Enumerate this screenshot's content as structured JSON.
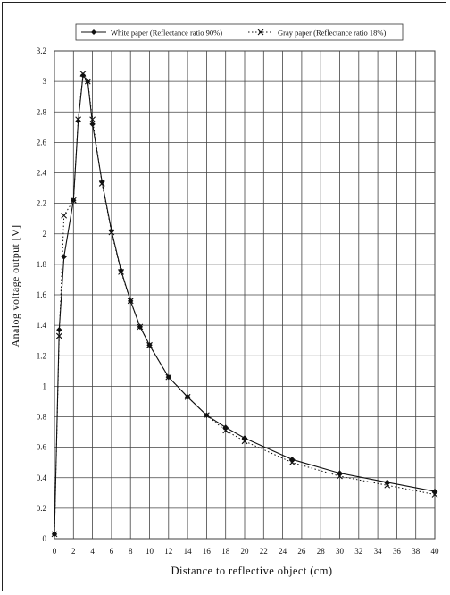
{
  "chart_data": {
    "type": "line",
    "title": "",
    "xlabel": "Distance to reflective object   (cm)",
    "ylabel": "Analog voltage output [V]",
    "xlim": [
      0,
      40
    ],
    "ylim": [
      0,
      3.2
    ],
    "xticks": [
      0,
      2,
      4,
      6,
      8,
      10,
      12,
      14,
      16,
      18,
      20,
      22,
      24,
      26,
      28,
      30,
      32,
      34,
      36,
      38,
      40
    ],
    "yticks": [
      0,
      0.2,
      0.4,
      0.6,
      0.8,
      1,
      1.2,
      1.4,
      1.6,
      1.8,
      2,
      2.2,
      2.4,
      2.6,
      2.8,
      3,
      3.2
    ],
    "grid": true,
    "legend_position": "top",
    "series": [
      {
        "name": "White paper (Reflectance ratio 90%)",
        "marker": "diamond",
        "line": "solid",
        "color": "#111111",
        "points": [
          [
            0,
            0.03
          ],
          [
            0.5,
            1.37
          ],
          [
            1,
            1.85
          ],
          [
            2,
            2.22
          ],
          [
            2.5,
            2.74
          ],
          [
            3,
            3.04
          ],
          [
            3.5,
            3.0
          ],
          [
            4,
            2.72
          ],
          [
            5,
            2.34
          ],
          [
            6,
            2.02
          ],
          [
            7,
            1.76
          ],
          [
            8,
            1.56
          ],
          [
            9,
            1.39
          ],
          [
            10,
            1.27
          ],
          [
            12,
            1.06
          ],
          [
            14,
            0.93
          ],
          [
            16,
            0.81
          ],
          [
            18,
            0.73
          ],
          [
            20,
            0.66
          ],
          [
            25,
            0.52
          ],
          [
            30,
            0.43
          ],
          [
            35,
            0.37
          ],
          [
            40,
            0.31
          ]
        ]
      },
      {
        "name": "Gray paper (Reflectance ratio 18%)",
        "marker": "x",
        "line": "dotted",
        "color": "#111111",
        "points": [
          [
            0,
            0.03
          ],
          [
            0.5,
            1.33
          ],
          [
            1,
            2.12
          ],
          [
            2,
            2.22
          ],
          [
            2.5,
            2.75
          ],
          [
            3,
            3.05
          ],
          [
            3.5,
            3.0
          ],
          [
            4,
            2.75
          ],
          [
            5,
            2.33
          ],
          [
            6,
            2.01
          ],
          [
            7,
            1.75
          ],
          [
            8,
            1.56
          ],
          [
            9,
            1.39
          ],
          [
            10,
            1.27
          ],
          [
            12,
            1.06
          ],
          [
            14,
            0.93
          ],
          [
            16,
            0.81
          ],
          [
            18,
            0.71
          ],
          [
            20,
            0.64
          ],
          [
            25,
            0.5
          ],
          [
            30,
            0.41
          ],
          [
            35,
            0.35
          ],
          [
            40,
            0.29
          ]
        ]
      }
    ]
  }
}
